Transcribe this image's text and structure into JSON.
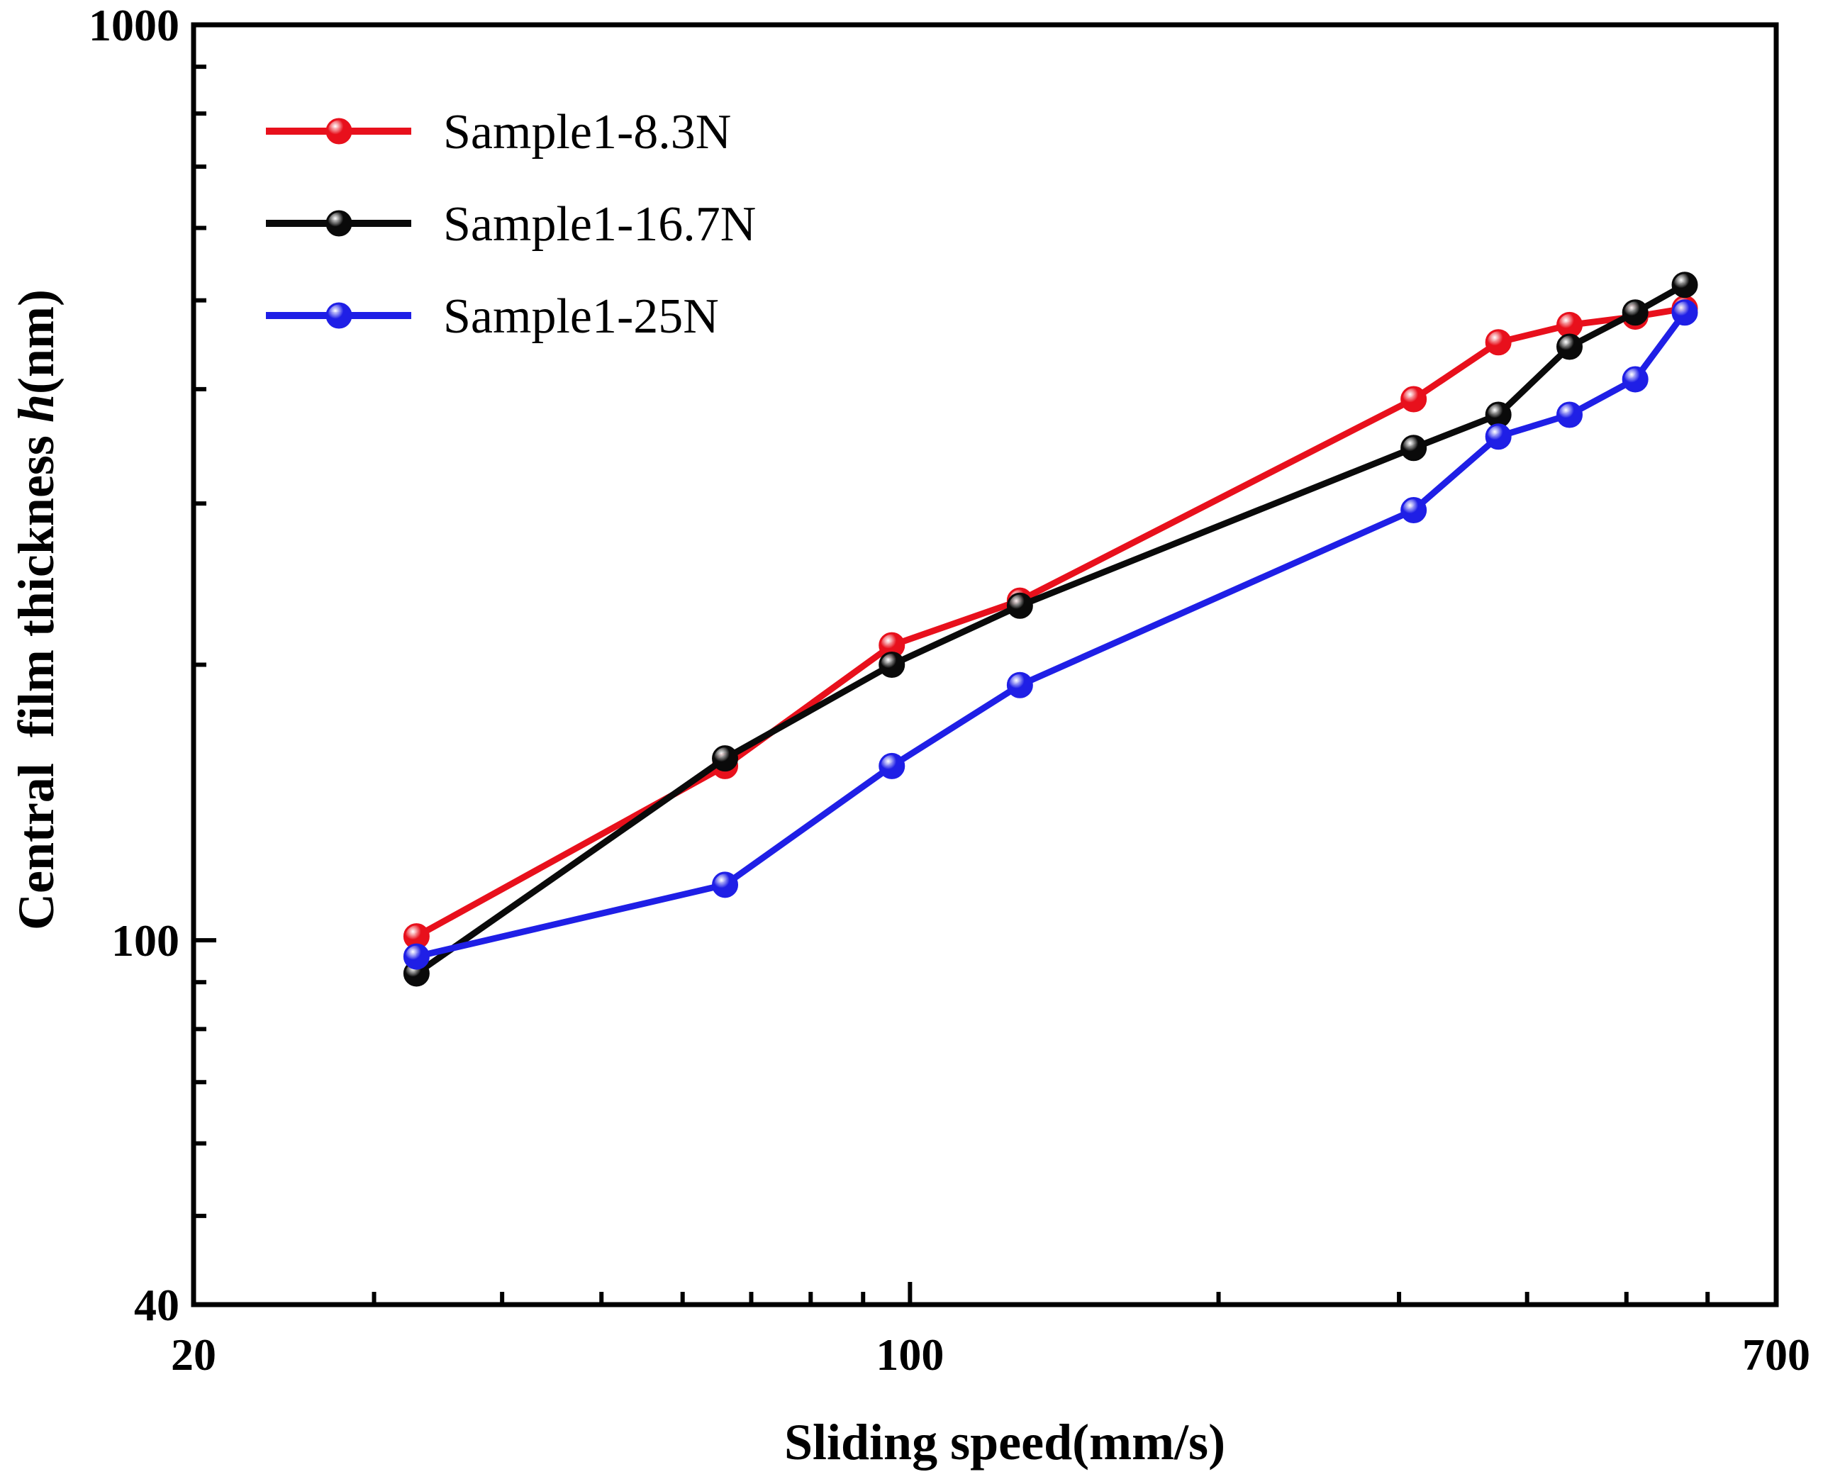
{
  "chart_data": {
    "type": "line",
    "title": "",
    "xlabel": "Sliding speed(mm/s)",
    "ylabel_prefix": "Central  film thickness ",
    "ylabel_var": "h",
    "ylabel_suffix": "(nm)",
    "xscale": "log",
    "yscale": "log",
    "xlim": [
      20,
      700
    ],
    "ylim": [
      40,
      1000
    ],
    "x_tick_labels": [
      "20",
      "100",
      "700"
    ],
    "x_tick_values": [
      20,
      100,
      700
    ],
    "y_tick_labels": [
      "40",
      "100",
      "1000"
    ],
    "y_tick_values": [
      40,
      100,
      1000
    ],
    "legend_position": "top-left",
    "series": [
      {
        "name": "Sample1-8.3N",
        "color": "#e8101c",
        "x": [
          33,
          66,
          96,
          128,
          310,
          375,
          440,
          510,
          570
        ],
        "y": [
          101,
          155,
          210,
          235,
          390,
          450,
          470,
          480,
          490
        ]
      },
      {
        "name": "Sample1-16.7N",
        "color": "#0a0a0a",
        "x": [
          33,
          66,
          96,
          128,
          310,
          375,
          440,
          510,
          570
        ],
        "y": [
          92,
          158,
          200,
          232,
          345,
          375,
          445,
          485,
          520
        ]
      },
      {
        "name": "Sample1-25N",
        "color": "#1f1fe6",
        "x": [
          33,
          66,
          96,
          128,
          310,
          375,
          440,
          510,
          570
        ],
        "y": [
          96,
          115,
          155,
          190,
          295,
          355,
          375,
          410,
          485
        ]
      }
    ]
  }
}
